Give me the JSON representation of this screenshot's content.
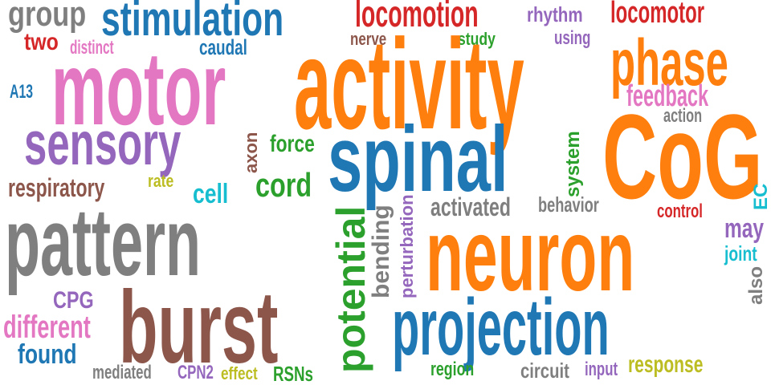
{
  "palette": {
    "gray": "#7f7f7f",
    "blue": "#1f77b4",
    "red": "#d62728",
    "purple": "#9467bd",
    "pink": "#e377c2",
    "brown": "#8c564b",
    "orange": "#ff7f0e",
    "green": "#2ca02c",
    "olive": "#bcbd22",
    "cyan": "#17becf"
  },
  "words": [
    {
      "text": "group",
      "color": "gray"
    },
    {
      "text": "stimulation",
      "color": "blue"
    },
    {
      "text": "locomotion",
      "color": "red"
    },
    {
      "text": "rhythm",
      "color": "purple"
    },
    {
      "text": "locomotor",
      "color": "red"
    },
    {
      "text": "two",
      "color": "red"
    },
    {
      "text": "distinct",
      "color": "pink"
    },
    {
      "text": "caudal",
      "color": "blue"
    },
    {
      "text": "nerve",
      "color": "brown"
    },
    {
      "text": "study",
      "color": "green"
    },
    {
      "text": "using",
      "color": "purple"
    },
    {
      "text": "motor",
      "color": "pink"
    },
    {
      "text": "activity",
      "color": "orange"
    },
    {
      "text": "phase",
      "color": "orange"
    },
    {
      "text": "A13",
      "color": "blue"
    },
    {
      "text": "feedback",
      "color": "pink"
    },
    {
      "text": "action",
      "color": "gray"
    },
    {
      "text": "sensory",
      "color": "purple"
    },
    {
      "text": "force",
      "color": "green"
    },
    {
      "text": "axon",
      "color": "brown"
    },
    {
      "text": "spinal",
      "color": "blue"
    },
    {
      "text": "CoG",
      "color": "orange"
    },
    {
      "text": "system",
      "color": "green"
    },
    {
      "text": "respiratory",
      "color": "brown"
    },
    {
      "text": "rate",
      "color": "olive"
    },
    {
      "text": "cell",
      "color": "cyan"
    },
    {
      "text": "cord",
      "color": "green"
    },
    {
      "text": "activated",
      "color": "gray"
    },
    {
      "text": "behavior",
      "color": "gray"
    },
    {
      "text": "EC",
      "color": "cyan"
    },
    {
      "text": "pattern",
      "color": "gray"
    },
    {
      "text": "potential",
      "color": "green"
    },
    {
      "text": "bending",
      "color": "gray"
    },
    {
      "text": "perturbation",
      "color": "purple"
    },
    {
      "text": "neuron",
      "color": "orange"
    },
    {
      "text": "control",
      "color": "red"
    },
    {
      "text": "may",
      "color": "purple"
    },
    {
      "text": "joint",
      "color": "cyan"
    },
    {
      "text": "also",
      "color": "gray"
    },
    {
      "text": "CPG",
      "color": "purple"
    },
    {
      "text": "burst",
      "color": "brown"
    },
    {
      "text": "different",
      "color": "pink"
    },
    {
      "text": "projection",
      "color": "blue"
    },
    {
      "text": "found",
      "color": "blue"
    },
    {
      "text": "mediated",
      "color": "gray"
    },
    {
      "text": "CPN2",
      "color": "purple"
    },
    {
      "text": "effect",
      "color": "olive"
    },
    {
      "text": "RSNs",
      "color": "green"
    },
    {
      "text": "region",
      "color": "green"
    },
    {
      "text": "circuit",
      "color": "gray"
    },
    {
      "text": "input",
      "color": "purple"
    },
    {
      "text": "response",
      "color": "olive"
    }
  ]
}
